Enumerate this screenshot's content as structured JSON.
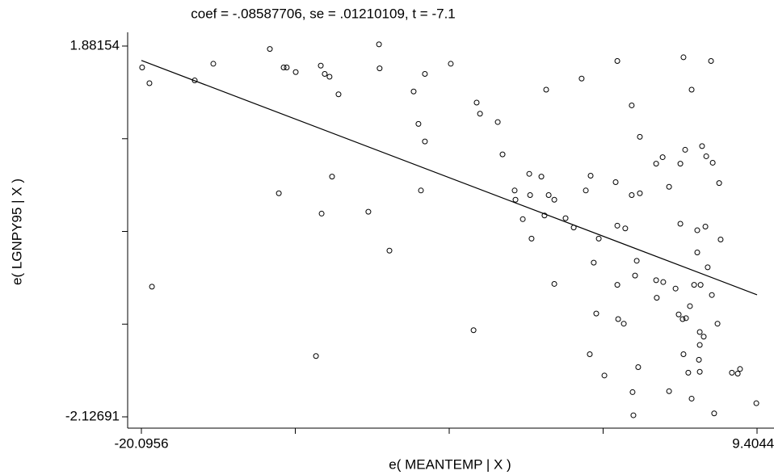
{
  "chart_data": {
    "type": "scatter",
    "title": "coef = -.08587706, se = .01210109, t = -7.1",
    "xlabel": "e( MEANTEMP | X )",
    "ylabel": "e( LGNPY95 | X )",
    "xlim": [
      -20.0956,
      9.40441
    ],
    "ylim": [
      -2.12691,
      1.88154
    ],
    "xticks": [
      -20.0956,
      {
        "value": -12.7207,
        "label": null
      },
      {
        "value": -5.34559,
        "label": null
      },
      {
        "value": 2.02941,
        "label": null
      },
      9.40441
    ],
    "yticks": [
      -2.12691,
      {
        "value": -1.1248,
        "label": null
      },
      {
        "value": -0.12268,
        "label": null
      },
      {
        "value": 0.87943,
        "label": null
      },
      1.88154
    ],
    "color": "#000000",
    "x": [
      -20.06,
      -19.71,
      -19.59,
      -17.54,
      -16.65,
      -13.94,
      -13.51,
      -13.28,
      -13.13,
      -12.7,
      -11.73,
      -11.5,
      -11.46,
      -11.31,
      -11.08,
      -10.96,
      -10.65,
      -9.22,
      -8.71,
      -8.68,
      -8.21,
      -7.05,
      -6.82,
      -6.7,
      -6.51,
      -6.51,
      -5.27,
      -4.18,
      -4.03,
      -3.87,
      -3.02,
      -2.79,
      -2.21,
      -2.17,
      -1.82,
      -1.51,
      -1.47,
      -1.4,
      -0.93,
      -0.78,
      -0.7,
      -0.58,
      -0.31,
      -0.31,
      0.23,
      0.62,
      1.0,
      1.2,
      1.39,
      1.43,
      1.58,
      1.7,
      1.82,
      2.09,
      2.63,
      2.71,
      2.71,
      2.71,
      2.75,
      3.02,
      3.09,
      3.4,
      3.4,
      3.44,
      3.48,
      3.56,
      3.64,
      3.71,
      3.79,
      3.79,
      4.57,
      4.57,
      4.6,
      4.88,
      4.91,
      5.19,
      5.19,
      5.5,
      5.65,
      5.73,
      5.73,
      5.84,
      5.88,
      5.88,
      5.96,
      6.0,
      6.11,
      6.19,
      6.27,
      6.27,
      6.39,
      6.54,
      6.54,
      6.62,
      6.66,
      6.66,
      6.66,
      6.7,
      6.77,
      6.85,
      6.93,
      6.97,
      7.04,
      7.2,
      7.24,
      7.28,
      7.35,
      7.51,
      7.59,
      7.66,
      8.2,
      8.48,
      8.59,
      9.37
    ],
    "y": [
      1.65,
      1.48,
      -0.72,
      1.51,
      1.69,
      1.85,
      0.29,
      1.65,
      1.65,
      1.6,
      -1.47,
      1.67,
      0.07,
      1.58,
      1.55,
      0.47,
      1.36,
      0.09,
      1.9,
      1.64,
      -0.33,
      1.39,
      1.04,
      0.32,
      1.58,
      0.85,
      1.69,
      -1.19,
      1.27,
      1.15,
      1.06,
      0.71,
      0.32,
      0.22,
      0.01,
      0.5,
      0.27,
      -0.2,
      0.47,
      0.05,
      1.41,
      0.27,
      -0.69,
      0.22,
      0.02,
      -0.08,
      1.53,
      0.32,
      -1.45,
      0.48,
      -0.46,
      -1.01,
      -0.2,
      -1.68,
      0.41,
      1.72,
      -0.7,
      -0.06,
      -1.07,
      -1.12,
      -0.09,
      1.24,
      0.27,
      -1.86,
      -2.11,
      -0.6,
      -0.44,
      -1.59,
      0.29,
      0.9,
      -0.65,
      0.61,
      -0.84,
      0.68,
      -0.67,
      0.36,
      -1.85,
      -0.74,
      -1.02,
      -0.04,
      0.61,
      -1.07,
      1.76,
      -1.45,
      0.76,
      -1.06,
      -1.65,
      -0.93,
      1.41,
      -1.93,
      -0.7,
      -0.35,
      -0.11,
      -1.51,
      -1.21,
      -1.35,
      -1.64,
      -0.7,
      0.8,
      -1.26,
      -0.07,
      0.69,
      -0.51,
      1.72,
      -0.81,
      0.62,
      -2.09,
      -1.12,
      0.4,
      -0.21,
      -1.65,
      -1.66,
      -1.61,
      -1.98
    ],
    "fit": {
      "x": [
        -20.0956,
        9.40441
      ],
      "y": [
        1.7257,
        -0.8076
      ]
    }
  }
}
